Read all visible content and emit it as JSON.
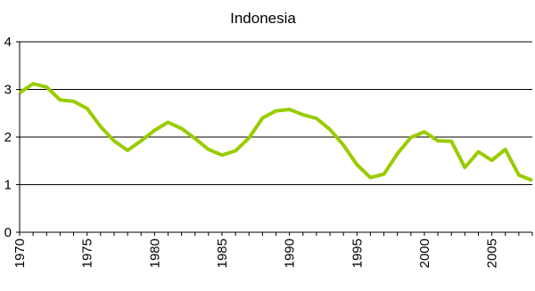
{
  "chart_data": {
    "type": "line",
    "title": "Indonesia",
    "xlabel": "",
    "ylabel": "",
    "xlim": [
      1970,
      2008
    ],
    "ylim": [
      0,
      4
    ],
    "y_ticks": [
      0,
      1,
      2,
      3,
      4
    ],
    "y_tick_labels": [
      "0",
      "1",
      "2",
      "3",
      "4"
    ],
    "x_ticks": [
      1970,
      1975,
      1980,
      1985,
      1990,
      1995,
      2000,
      2005
    ],
    "x_tick_labels": [
      "1970",
      "1975",
      "1980",
      "1985",
      "1990",
      "1995",
      "2000",
      "2005"
    ],
    "grid": "horizontal",
    "line_color": "#99cc00",
    "series": [
      {
        "x": [
          1970,
          1971,
          1972,
          1973,
          1974,
          1975,
          1976,
          1977,
          1978,
          1979,
          1980,
          1981,
          1982,
          1983,
          1984,
          1985,
          1986,
          1987,
          1988,
          1989,
          1990,
          1991,
          1992,
          1993,
          1994,
          1995,
          1996,
          1997,
          1998,
          1999,
          2000,
          2001,
          2002,
          2003,
          2004,
          2005,
          2006,
          2007,
          2008
        ],
        "values": [
          2.93,
          3.12,
          3.05,
          2.78,
          2.75,
          2.6,
          2.22,
          1.92,
          1.72,
          1.92,
          2.14,
          2.31,
          2.18,
          1.97,
          1.74,
          1.62,
          1.71,
          1.98,
          2.4,
          2.55,
          2.58,
          2.47,
          2.39,
          2.16,
          1.83,
          1.42,
          1.15,
          1.22,
          1.65,
          1.99,
          2.11,
          1.92,
          1.91,
          1.36,
          1.69,
          1.51,
          1.74,
          1.2,
          1.09
        ]
      }
    ]
  }
}
